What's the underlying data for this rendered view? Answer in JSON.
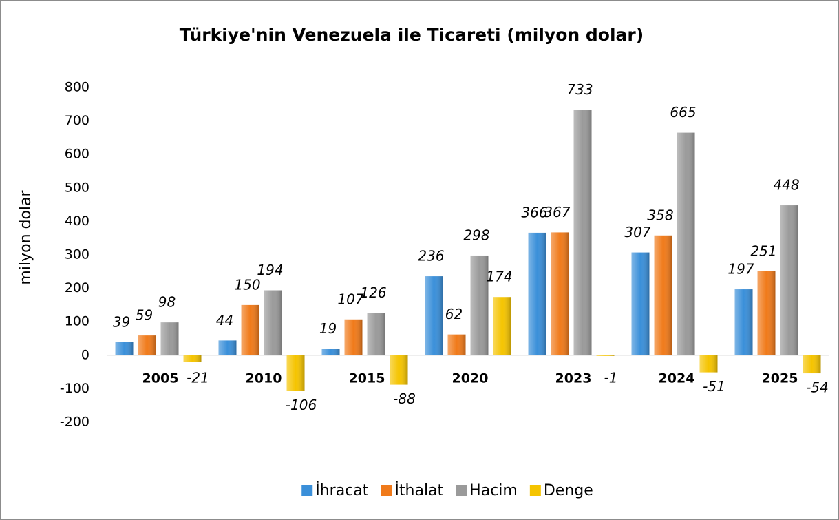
{
  "chart_data": {
    "type": "bar",
    "title": "Türkiye'nin Venezuela ile Ticareti (milyon dolar)",
    "y_label": "milyon dolar",
    "categories": [
      "2005",
      "2010",
      "2015",
      "2020",
      "2023",
      "2024",
      "2025"
    ],
    "series": [
      {
        "name": "İhracat",
        "color": "#3a8fd9",
        "values": [
          39,
          44,
          19,
          236,
          366,
          307,
          197
        ]
      },
      {
        "name": "İthalat",
        "color": "#f07a1a",
        "values": [
          59,
          150,
          107,
          62,
          367,
          358,
          251
        ]
      },
      {
        "name": "Hacim",
        "color": "#9a9a9a",
        "values": [
          98,
          194,
          126,
          298,
          733,
          665,
          448
        ]
      },
      {
        "name": "Denge",
        "color": "#f5c400",
        "values": [
          -21,
          -106,
          -88,
          174,
          -1,
          -51,
          -54
        ]
      }
    ],
    "ylim": [
      -200,
      800
    ],
    "yticks": [
      -200,
      -100,
      0,
      100,
      200,
      300,
      400,
      500,
      600,
      700,
      800
    ],
    "grid": false,
    "legend": "bottom"
  }
}
